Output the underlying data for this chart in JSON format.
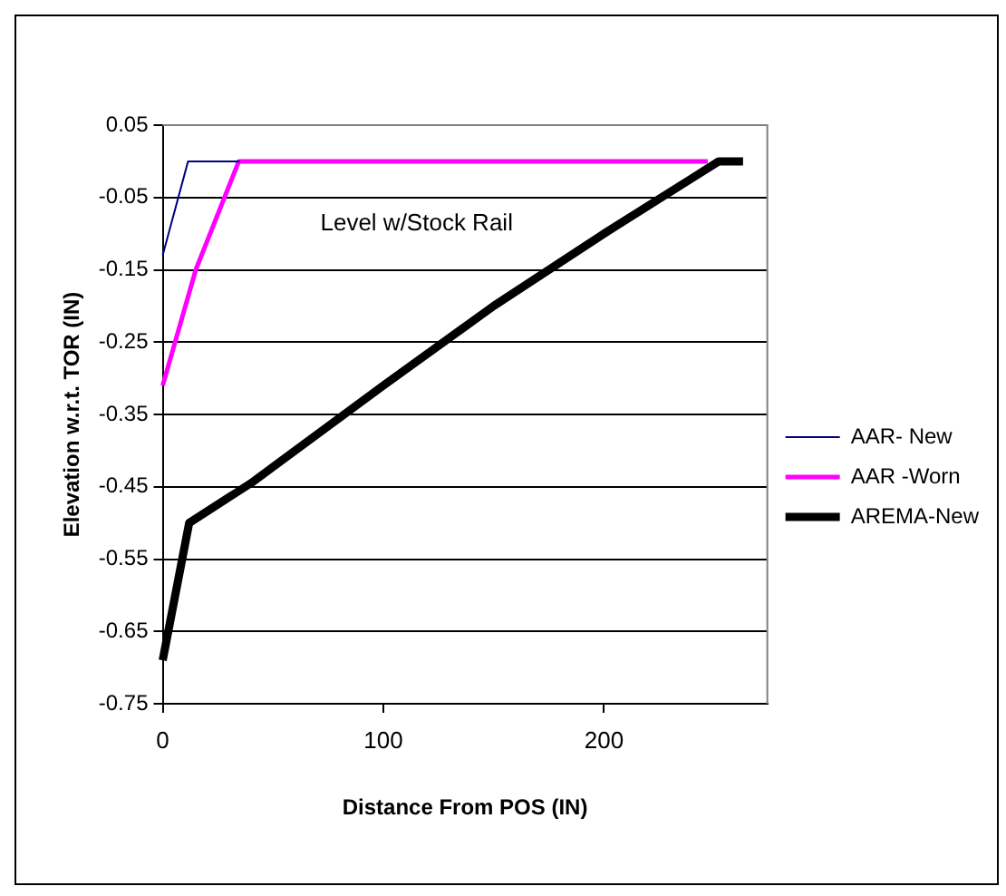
{
  "chart_data": {
    "type": "line",
    "xlabel": "Distance From POS (IN)",
    "ylabel": "Elevation w.r.t. TOR (IN)",
    "xlim": [
      0,
      274
    ],
    "xticks": [
      0,
      100,
      200
    ],
    "ylim": [
      -0.75,
      0.05
    ],
    "yticks": [
      -0.75,
      -0.65,
      -0.55,
      -0.45,
      -0.35,
      -0.25,
      -0.15,
      -0.05,
      0.05
    ],
    "grid": "y",
    "legend": "right",
    "marker": "none",
    "line_style": "solid",
    "annotations": [
      "Level w/Stock Rail"
    ],
    "series": [
      {
        "name": "AAR- New",
        "color": "#000080",
        "x": [
          0,
          11.5,
          35
        ],
        "values": [
          -0.13,
          0,
          0
        ]
      },
      {
        "name": "AAR -Worn",
        "color": "#ff00ff",
        "x": [
          0,
          15,
          34.5,
          247
        ],
        "values": [
          -0.31,
          -0.15,
          0,
          0
        ]
      },
      {
        "name": "AREMA-New",
        "color": "#000000",
        "x": [
          0,
          12,
          40,
          100,
          150,
          200,
          252,
          263
        ],
        "values": [
          -0.69,
          -0.5,
          -0.445,
          -0.31,
          -0.2,
          -0.1,
          0,
          0
        ]
      }
    ]
  }
}
